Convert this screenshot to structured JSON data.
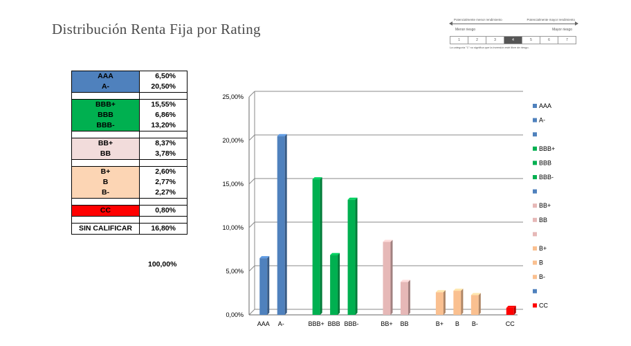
{
  "page_title": "Distribución Renta Fija por Rating",
  "risk_scale": {
    "left_top": "Potencialmente menor rendimiento",
    "right_top": "Potencialmente mayor rendimiento",
    "left_bottom": "Menor riesgo",
    "right_bottom": "Mayor riesgo",
    "levels": [
      "1",
      "2",
      "3",
      "4",
      "5",
      "6",
      "7"
    ],
    "active_index": 3,
    "note": "La categoría \"1\" no significa que la inversión esté libre de riesgo."
  },
  "rating_table": {
    "groups": [
      {
        "color": "#4f81bd",
        "labels": [
          "AAA",
          "A-"
        ],
        "values": [
          "6,50%",
          "20,50%"
        ]
      },
      {
        "color": "#00b050",
        "labels": [
          "BBB+",
          "BBB",
          "BBB-"
        ],
        "values": [
          "15,55%",
          "6,86%",
          "13,20%"
        ]
      },
      {
        "color": "#f2dcdb",
        "labels": [
          "BB+",
          "BB"
        ],
        "values": [
          "8,37%",
          "3,78%"
        ]
      },
      {
        "color": "#fcd5b4",
        "labels": [
          "B+",
          "B",
          "B-"
        ],
        "values": [
          "2,60%",
          "2,77%",
          "2,27%"
        ]
      },
      {
        "color": "#ff0000",
        "labels": [
          "CC"
        ],
        "values": [
          "0,80%"
        ]
      },
      {
        "color": "#ffffff",
        "labels": [
          "SIN CALIFICAR"
        ],
        "values": [
          "16,80%"
        ]
      }
    ],
    "total": "100,00%"
  },
  "chart_data": {
    "type": "bar",
    "categories": [
      "AAA",
      "A-",
      "",
      "BBB+",
      "BBB",
      "BBB-",
      "",
      "BB+",
      "BB",
      "",
      "B+",
      "B",
      "B-",
      "",
      "CC"
    ],
    "values": [
      6.5,
      20.5,
      0,
      15.55,
      6.86,
      13.2,
      0,
      8.37,
      3.78,
      0,
      2.6,
      2.77,
      2.27,
      0,
      0.8
    ],
    "bar_colors": [
      "#4f81bd",
      "#4f81bd",
      "#4f81bd",
      "#00b050",
      "#00b050",
      "#00b050",
      "#4f81bd",
      "#e6b8b7",
      "#e6b8b7",
      "#e6b8b7",
      "#fac090",
      "#fac090",
      "#fac090",
      "#4f81bd",
      "#ff0000"
    ],
    "y_ticks": [
      "0,00%",
      "5,00%",
      "10,00%",
      "15,00%",
      "20,00%",
      "25,00%"
    ],
    "ylim": [
      0,
      25
    ],
    "grid": true,
    "legend_position": "right",
    "legend": [
      {
        "label": "AAA",
        "color": "#4f81bd"
      },
      {
        "label": "A-",
        "color": "#4f81bd"
      },
      {
        "label": "",
        "color": "#4f81bd"
      },
      {
        "label": "BBB+",
        "color": "#00b050"
      },
      {
        "label": "BBB",
        "color": "#00b050"
      },
      {
        "label": "BBB-",
        "color": "#00b050"
      },
      {
        "label": "",
        "color": "#4f81bd"
      },
      {
        "label": "BB+",
        "color": "#e6b8b7"
      },
      {
        "label": "BB",
        "color": "#e6b8b7"
      },
      {
        "label": "",
        "color": "#e6b8b7"
      },
      {
        "label": "B+",
        "color": "#fac090"
      },
      {
        "label": "B",
        "color": "#fac090"
      },
      {
        "label": "B-",
        "color": "#fac090"
      },
      {
        "label": "",
        "color": "#4f81bd"
      },
      {
        "label": "CC",
        "color": "#ff0000"
      }
    ]
  }
}
